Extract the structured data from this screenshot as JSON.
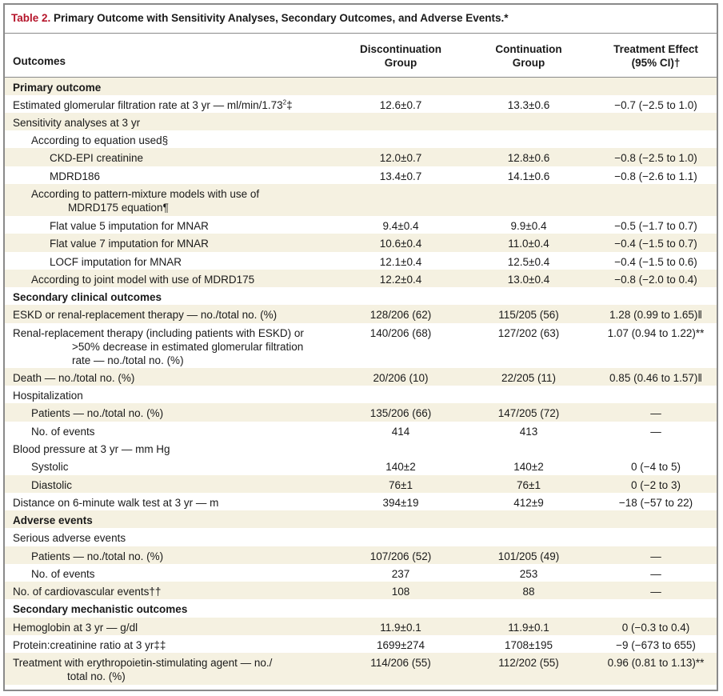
{
  "table": {
    "number": "Table 2.",
    "title": "Primary Outcome with Sensitivity Analyses, Secondary Outcomes, and Adverse Events.*",
    "headers": {
      "outcomes": "Outcomes",
      "col1_line1": "Discontinuation",
      "col1_line2": "Group",
      "col2_line1": "Continuation",
      "col2_line2": "Group",
      "col3_line1": "Treatment Effect",
      "col3_line2": "(95% CI)†"
    },
    "rows": [
      {
        "label": "Primary outcome",
        "v1": "",
        "v2": "",
        "v3": ""
      },
      {
        "label": "Estimated glomerular filtration rate at 3 yr — ml/min/1.73",
        "sup": "2",
        "label_tail": "‡",
        "v1": "12.6±0.7",
        "v2": "13.3±0.6",
        "v3": "−0.7 (−2.5 to 1.0)"
      },
      {
        "label": "Sensitivity analyses at 3 yr",
        "v1": "",
        "v2": "",
        "v3": ""
      },
      {
        "label": "According to equation used§",
        "v1": "",
        "v2": "",
        "v3": ""
      },
      {
        "label": "CKD-EPI creatinine",
        "v1": "12.0±0.7",
        "v2": "12.8±0.6",
        "v3": "−0.8 (−2.5 to 1.0)"
      },
      {
        "label": "MDRD186",
        "v1": "13.4±0.7",
        "v2": "14.1±0.6",
        "v3": "−0.8 (−2.6 to 1.1)"
      },
      {
        "label": "According to pattern-mixture models with use of",
        "label2": "MDRD175 equation¶",
        "v1": "",
        "v2": "",
        "v3": ""
      },
      {
        "label": "Flat value 5 imputation for MNAR",
        "v1": "9.4±0.4",
        "v2": "9.9±0.4",
        "v3": "−0.5 (−1.7 to 0.7)"
      },
      {
        "label": "Flat value 7 imputation for MNAR",
        "v1": "10.6±0.4",
        "v2": "11.0±0.4",
        "v3": "−0.4 (−1.5 to 0.7)"
      },
      {
        "label": "LOCF imputation for MNAR",
        "v1": "12.1±0.4",
        "v2": "12.5±0.4",
        "v3": "−0.4 (−1.5 to 0.6)"
      },
      {
        "label": "According to joint model with use of MDRD175",
        "v1": "12.2±0.4",
        "v2": "13.0±0.4",
        "v3": "−0.8 (−2.0 to 0.4)"
      },
      {
        "label": "Secondary clinical outcomes",
        "v1": "",
        "v2": "",
        "v3": ""
      },
      {
        "label": "ESKD or renal-replacement therapy — no./total no. (%)",
        "v1": "128/206 (62)",
        "v2": "115/205 (56)",
        "v3": "1.28 (0.99 to 1.65)‖"
      },
      {
        "label": "Renal-replacement therapy (including patients with ESKD) or",
        "label2": ">50% decrease in estimated glomerular filtration",
        "label3": "rate — no./total no. (%)",
        "v1": "140/206 (68)",
        "v2": "127/202 (63)",
        "v3": "1.07 (0.94 to 1.22)**"
      },
      {
        "label": "Death — no./total no. (%)",
        "v1": "20/206 (10)",
        "v2": "22/205 (11)",
        "v3": "0.85 (0.46 to 1.57)‖"
      },
      {
        "label": "Hospitalization",
        "v1": "",
        "v2": "",
        "v3": ""
      },
      {
        "label": "Patients — no./total no. (%)",
        "v1": "135/206 (66)",
        "v2": "147/205 (72)",
        "v3": "—"
      },
      {
        "label": "No. of events",
        "v1": "414",
        "v2": "413",
        "v3": "—"
      },
      {
        "label": "Blood pressure at 3 yr — mm Hg",
        "v1": "",
        "v2": "",
        "v3": ""
      },
      {
        "label": "Systolic",
        "v1": "140±2",
        "v2": "140±2",
        "v3": "0 (−4 to 5)"
      },
      {
        "label": "Diastolic",
        "v1": "76±1",
        "v2": "76±1",
        "v3": "0 (−2 to 3)"
      },
      {
        "label": "Distance on 6-minute walk test at 3 yr — m",
        "v1": "394±19",
        "v2": "412±9",
        "v3": "−18 (−57 to 22)"
      },
      {
        "label": "Adverse events",
        "v1": "",
        "v2": "",
        "v3": ""
      },
      {
        "label": "Serious adverse events",
        "v1": "",
        "v2": "",
        "v3": ""
      },
      {
        "label": "Patients — no./total no. (%)",
        "v1": "107/206 (52)",
        "v2": "101/205 (49)",
        "v3": "—"
      },
      {
        "label": "No. of events",
        "v1": "237",
        "v2": "253",
        "v3": "—"
      },
      {
        "label": "No. of cardiovascular events††",
        "v1": "108",
        "v2": "88",
        "v3": "—"
      },
      {
        "label": "Secondary mechanistic outcomes",
        "v1": "",
        "v2": "",
        "v3": ""
      },
      {
        "label": "Hemoglobin at 3 yr — g/dl",
        "v1": "11.9±0.1",
        "v2": "11.9±0.1",
        "v3": "0 (−0.3 to 0.4)"
      },
      {
        "label": "Protein:creatinine ratio at 3 yr‡‡",
        "v1": "1699±274",
        "v2": "1708±195",
        "v3": "−9 (−673 to 655)"
      },
      {
        "label": "Treatment with erythropoietin-stimulating agent — no./",
        "label2": "total no. (%)",
        "v1": "114/206 (55)",
        "v2": "112/202 (55)",
        "v3": "0.96 (0.81 to 1.13)**"
      }
    ]
  },
  "colors": {
    "accent": "#b5152b",
    "shade": "#f5f1e1",
    "border": "#8a8a8a"
  }
}
